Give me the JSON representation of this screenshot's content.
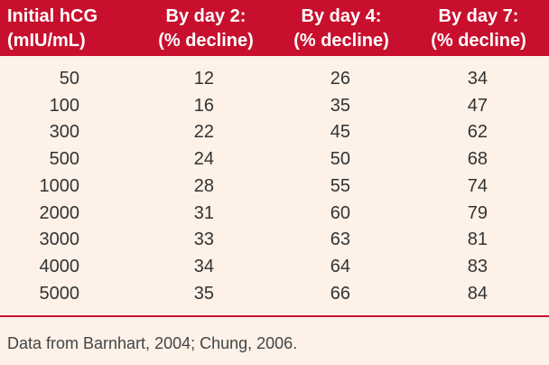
{
  "table": {
    "header": [
      [
        "Initial hCG",
        "(mIU/mL)"
      ],
      [
        "By day 2:",
        "(% decline)"
      ],
      [
        "By day 4:",
        "(% decline)"
      ],
      [
        "By day 7:",
        "(% decline)"
      ]
    ],
    "rows": [
      [
        50,
        12,
        26,
        34
      ],
      [
        100,
        16,
        35,
        47
      ],
      [
        300,
        22,
        45,
        62
      ],
      [
        500,
        24,
        50,
        68
      ],
      [
        1000,
        28,
        55,
        74
      ],
      [
        2000,
        31,
        60,
        79
      ],
      [
        3000,
        33,
        63,
        81
      ],
      [
        4000,
        34,
        64,
        83
      ],
      [
        5000,
        35,
        66,
        84
      ]
    ],
    "footnote": "Data from Barnhart, 2004; Chung, 2006."
  }
}
